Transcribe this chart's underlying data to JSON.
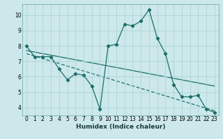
{
  "title": "",
  "xlabel": "Humidex (Indice chaleur)",
  "bg_color": "#cce8ea",
  "line_color": "#1a6e6a",
  "grid_color": "#aed4d6",
  "spine_color": "#7ab0b2",
  "xlim": [
    -0.5,
    23.5
  ],
  "ylim": [
    3.5,
    10.7
  ],
  "xticks": [
    0,
    1,
    2,
    3,
    4,
    5,
    6,
    7,
    8,
    9,
    10,
    11,
    12,
    13,
    14,
    15,
    16,
    17,
    18,
    19,
    20,
    21,
    22,
    23
  ],
  "yticks": [
    4,
    5,
    6,
    7,
    8,
    9,
    10
  ],
  "series1_x": [
    0,
    1,
    2,
    3,
    4,
    5,
    6,
    7,
    8,
    9,
    10,
    11,
    12,
    13,
    14,
    15,
    16,
    17,
    18,
    19,
    20,
    21,
    22,
    23
  ],
  "series1_y": [
    8.0,
    7.3,
    7.3,
    7.3,
    6.5,
    5.8,
    6.2,
    6.1,
    5.4,
    3.9,
    8.0,
    8.1,
    9.4,
    9.3,
    9.6,
    10.35,
    8.5,
    7.5,
    5.5,
    4.7,
    4.7,
    4.8,
    3.9,
    3.7
  ],
  "series2_x": [
    0,
    23
  ],
  "series2_y": [
    7.7,
    5.4
  ],
  "series3_x": [
    0,
    23
  ],
  "series3_y": [
    7.5,
    3.8
  ],
  "marker_size": 2.2,
  "linewidth": 0.9,
  "xlabel_fontsize": 6.5,
  "tick_fontsize": 5.5
}
